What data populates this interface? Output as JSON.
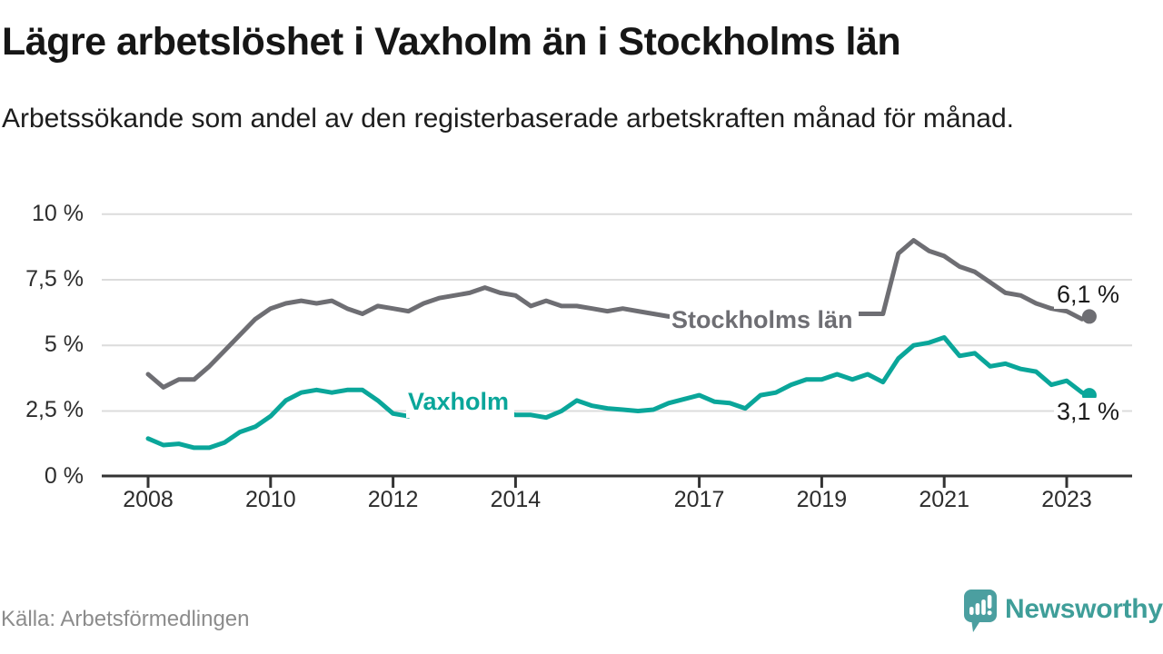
{
  "header": {
    "title": "Lägre arbetslöshet i Vaxholm än i Stockholms län",
    "subtitle": "Arbetssökande som andel av den registerbaserade arbetskraften månad för månad."
  },
  "footer": {
    "source": "Källa: Arbetsförmedlingen",
    "brand_name": "Newsworthy",
    "brand_icon": "newsworthy-speech-bubble-bar-chart-icon"
  },
  "colors": {
    "vaxholm_teal": "#0aa69a",
    "stockholm_gray": "#6e6e73",
    "grid": "#dcdcdc",
    "axis": "#333333",
    "tick_text": "#2d2d2d",
    "title_text": "#161616",
    "source_text": "#8c8c8c",
    "brand_teal": "#3f9e99",
    "brand_icon_teal": "#4b9fa0"
  },
  "chart_data": {
    "type": "line",
    "title": "Lägre arbetslöshet i Vaxholm än i Stockholms län",
    "subtitle": "Arbetssökande som andel av den registerbaserade arbetskraften månad för månad.",
    "unit": "%",
    "grid": true,
    "legend_position": "inline-labels",
    "x_axis": {
      "label": "",
      "ticks": [
        2008,
        2010,
        2012,
        2014,
        2017,
        2019,
        2021,
        2023
      ],
      "range_years": [
        2007.25,
        2024.05
      ]
    },
    "y_axis": {
      "label": "",
      "ticks": [
        {
          "value": 10,
          "label": "10 %"
        },
        {
          "value": 7.5,
          "label": "7,5 %"
        },
        {
          "value": 5,
          "label": "5 %"
        },
        {
          "value": 2.5,
          "label": "2,5 %"
        },
        {
          "value": 0,
          "label": "0 %"
        }
      ],
      "range": [
        0,
        10
      ]
    },
    "series": [
      {
        "name": "Stockholms län",
        "color": "#6e6e73",
        "end_value": 6.1,
        "end_label": "6,1 %",
        "points": [
          [
            2008.0,
            3.9
          ],
          [
            2008.25,
            3.4
          ],
          [
            2008.5,
            3.7
          ],
          [
            2008.75,
            3.7
          ],
          [
            2009.0,
            4.2
          ],
          [
            2009.25,
            4.8
          ],
          [
            2009.5,
            5.4
          ],
          [
            2009.75,
            6.0
          ],
          [
            2010.0,
            6.4
          ],
          [
            2010.25,
            6.6
          ],
          [
            2010.5,
            6.7
          ],
          [
            2010.75,
            6.6
          ],
          [
            2011.0,
            6.7
          ],
          [
            2011.25,
            6.4
          ],
          [
            2011.5,
            6.2
          ],
          [
            2011.75,
            6.5
          ],
          [
            2012.0,
            6.4
          ],
          [
            2012.25,
            6.3
          ],
          [
            2012.5,
            6.6
          ],
          [
            2012.75,
            6.8
          ],
          [
            2013.0,
            6.9
          ],
          [
            2013.25,
            7.0
          ],
          [
            2013.5,
            7.2
          ],
          [
            2013.75,
            7.0
          ],
          [
            2014.0,
            6.9
          ],
          [
            2014.25,
            6.5
          ],
          [
            2014.5,
            6.7
          ],
          [
            2014.75,
            6.5
          ],
          [
            2015.0,
            6.5
          ],
          [
            2015.25,
            6.4
          ],
          [
            2015.5,
            6.3
          ],
          [
            2015.75,
            6.4
          ],
          [
            2016.0,
            6.3
          ],
          [
            2016.25,
            6.2
          ],
          [
            2016.5,
            6.1
          ],
          [
            2016.75,
            6.1
          ],
          [
            2017.0,
            6.1
          ],
          [
            2017.25,
            6.0
          ],
          [
            2017.5,
            6.0
          ],
          [
            2017.75,
            6.0
          ],
          [
            2018.0,
            6.0
          ],
          [
            2018.25,
            5.9
          ],
          [
            2018.5,
            6.0
          ],
          [
            2018.75,
            6.0
          ],
          [
            2019.0,
            6.1
          ],
          [
            2019.25,
            6.1
          ],
          [
            2019.5,
            6.2
          ],
          [
            2019.75,
            6.2
          ],
          [
            2020.0,
            6.2
          ],
          [
            2020.25,
            8.5
          ],
          [
            2020.5,
            9.0
          ],
          [
            2020.75,
            8.6
          ],
          [
            2021.0,
            8.4
          ],
          [
            2021.25,
            8.0
          ],
          [
            2021.5,
            7.8
          ],
          [
            2021.75,
            7.4
          ],
          [
            2022.0,
            7.0
          ],
          [
            2022.25,
            6.9
          ],
          [
            2022.5,
            6.6
          ],
          [
            2022.75,
            6.4
          ],
          [
            2023.0,
            6.3
          ],
          [
            2023.25,
            6.0
          ],
          [
            2023.37,
            6.1
          ]
        ]
      },
      {
        "name": "Vaxholm",
        "color": "#0aa69a",
        "end_value": 3.1,
        "end_label": "3,1 %",
        "points": [
          [
            2008.0,
            1.45
          ],
          [
            2008.25,
            1.2
          ],
          [
            2008.5,
            1.25
          ],
          [
            2008.75,
            1.1
          ],
          [
            2009.0,
            1.1
          ],
          [
            2009.25,
            1.3
          ],
          [
            2009.5,
            1.7
          ],
          [
            2009.75,
            1.9
          ],
          [
            2010.0,
            2.3
          ],
          [
            2010.25,
            2.9
          ],
          [
            2010.5,
            3.2
          ],
          [
            2010.75,
            3.3
          ],
          [
            2011.0,
            3.2
          ],
          [
            2011.25,
            3.3
          ],
          [
            2011.5,
            3.3
          ],
          [
            2011.75,
            2.9
          ],
          [
            2012.0,
            2.4
          ],
          [
            2012.25,
            2.3
          ],
          [
            2012.5,
            2.7
          ],
          [
            2012.75,
            2.8
          ],
          [
            2013.0,
            2.9
          ],
          [
            2013.25,
            3.0
          ],
          [
            2013.5,
            2.8
          ],
          [
            2013.75,
            2.5
          ],
          [
            2014.0,
            2.35
          ],
          [
            2014.25,
            2.35
          ],
          [
            2014.5,
            2.25
          ],
          [
            2014.75,
            2.5
          ],
          [
            2015.0,
            2.9
          ],
          [
            2015.25,
            2.7
          ],
          [
            2015.5,
            2.6
          ],
          [
            2015.75,
            2.55
          ],
          [
            2016.0,
            2.5
          ],
          [
            2016.25,
            2.55
          ],
          [
            2016.5,
            2.8
          ],
          [
            2016.75,
            2.95
          ],
          [
            2017.0,
            3.1
          ],
          [
            2017.25,
            2.85
          ],
          [
            2017.5,
            2.8
          ],
          [
            2017.75,
            2.6
          ],
          [
            2018.0,
            3.1
          ],
          [
            2018.25,
            3.2
          ],
          [
            2018.5,
            3.5
          ],
          [
            2018.75,
            3.7
          ],
          [
            2019.0,
            3.7
          ],
          [
            2019.25,
            3.9
          ],
          [
            2019.5,
            3.7
          ],
          [
            2019.75,
            3.9
          ],
          [
            2020.0,
            3.6
          ],
          [
            2020.25,
            4.5
          ],
          [
            2020.5,
            5.0
          ],
          [
            2020.75,
            5.1
          ],
          [
            2021.0,
            5.3
          ],
          [
            2021.25,
            4.6
          ],
          [
            2021.5,
            4.7
          ],
          [
            2021.75,
            4.2
          ],
          [
            2022.0,
            4.3
          ],
          [
            2022.25,
            4.1
          ],
          [
            2022.5,
            4.0
          ],
          [
            2022.75,
            3.5
          ],
          [
            2023.0,
            3.65
          ],
          [
            2023.25,
            3.2
          ],
          [
            2023.37,
            3.1
          ]
        ]
      }
    ]
  }
}
